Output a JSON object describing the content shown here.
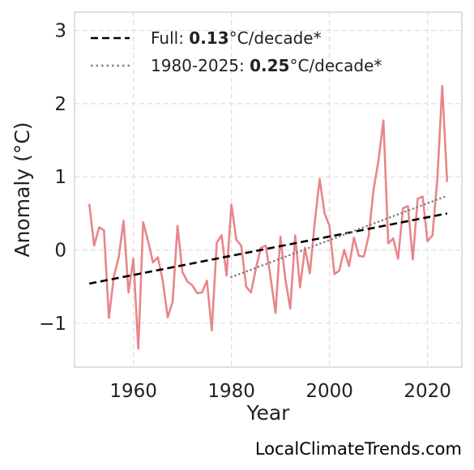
{
  "chart_data": {
    "type": "line",
    "xlabel": "Year",
    "ylabel": "Anomaly (°C)",
    "xlim": [
      1948,
      2027
    ],
    "ylim": [
      -1.6,
      3.25
    ],
    "xticks": [
      1960,
      1980,
      2000,
      2020
    ],
    "yticks": [
      -1,
      0,
      1,
      2,
      3
    ],
    "ytick_labels": [
      "−1",
      "0",
      "1",
      "2",
      "3"
    ],
    "grid": true,
    "legend_position": "top-left",
    "series": [
      {
        "color": "#e8868a",
        "style": "solid",
        "x": [
          1951,
          1952,
          1953,
          1954,
          1955,
          1956,
          1957,
          1958,
          1959,
          1960,
          1961,
          1962,
          1963,
          1964,
          1965,
          1966,
          1967,
          1968,
          1969,
          1970,
          1971,
          1972,
          1973,
          1974,
          1975,
          1976,
          1977,
          1978,
          1979,
          1980,
          1981,
          1982,
          1983,
          1984,
          1985,
          1986,
          1987,
          1988,
          1989,
          1990,
          1991,
          1992,
          1993,
          1994,
          1995,
          1996,
          1997,
          1998,
          1999,
          2000,
          2001,
          2002,
          2003,
          2004,
          2005,
          2006,
          2007,
          2008,
          2009,
          2010,
          2011,
          2012,
          2013,
          2014,
          2015,
          2016,
          2017,
          2018,
          2019,
          2020,
          2021,
          2022,
          2023,
          2024
        ],
        "y": [
          0.63,
          0.06,
          0.31,
          0.27,
          -0.93,
          -0.37,
          -0.1,
          0.4,
          -0.58,
          -0.12,
          -1.35,
          0.38,
          0.12,
          -0.17,
          -0.1,
          -0.42,
          -0.92,
          -0.71,
          0.33,
          -0.3,
          -0.43,
          -0.48,
          -0.59,
          -0.58,
          -0.42,
          -1.1,
          0.1,
          0.2,
          -0.35,
          0.62,
          0.14,
          0.06,
          -0.5,
          -0.58,
          -0.25,
          0.03,
          0.06,
          -0.38,
          -0.86,
          0.18,
          -0.4,
          -0.8,
          0.2,
          -0.51,
          0.03,
          -0.32,
          0.38,
          0.97,
          0.5,
          0.33,
          -0.33,
          -0.28,
          0.0,
          -0.22,
          0.17,
          -0.08,
          -0.09,
          0.19,
          0.83,
          1.22,
          1.77,
          0.09,
          0.16,
          -0.12,
          0.57,
          0.6,
          -0.13,
          0.7,
          0.73,
          0.12,
          0.2,
          0.96,
          2.24,
          0.93
        ]
      },
      {
        "color": "#000000",
        "style": "dashed",
        "x": [
          1951,
          2024
        ],
        "y": [
          -0.46,
          0.5
        ]
      },
      {
        "color": "#808080",
        "style": "dotted",
        "x": [
          1980,
          2024
        ],
        "y": [
          -0.37,
          0.74
        ]
      }
    ],
    "legend": [
      {
        "prefix": "Full: ",
        "value": "0.13",
        "suffix": "°C/decade*",
        "color": "#000000",
        "style": "dashed"
      },
      {
        "prefix": "1980-2025: ",
        "value": "0.25",
        "suffix": "°C/decade*",
        "color": "#808080",
        "style": "dotted"
      }
    ]
  },
  "watermark": "LocalClimateTrends.com"
}
